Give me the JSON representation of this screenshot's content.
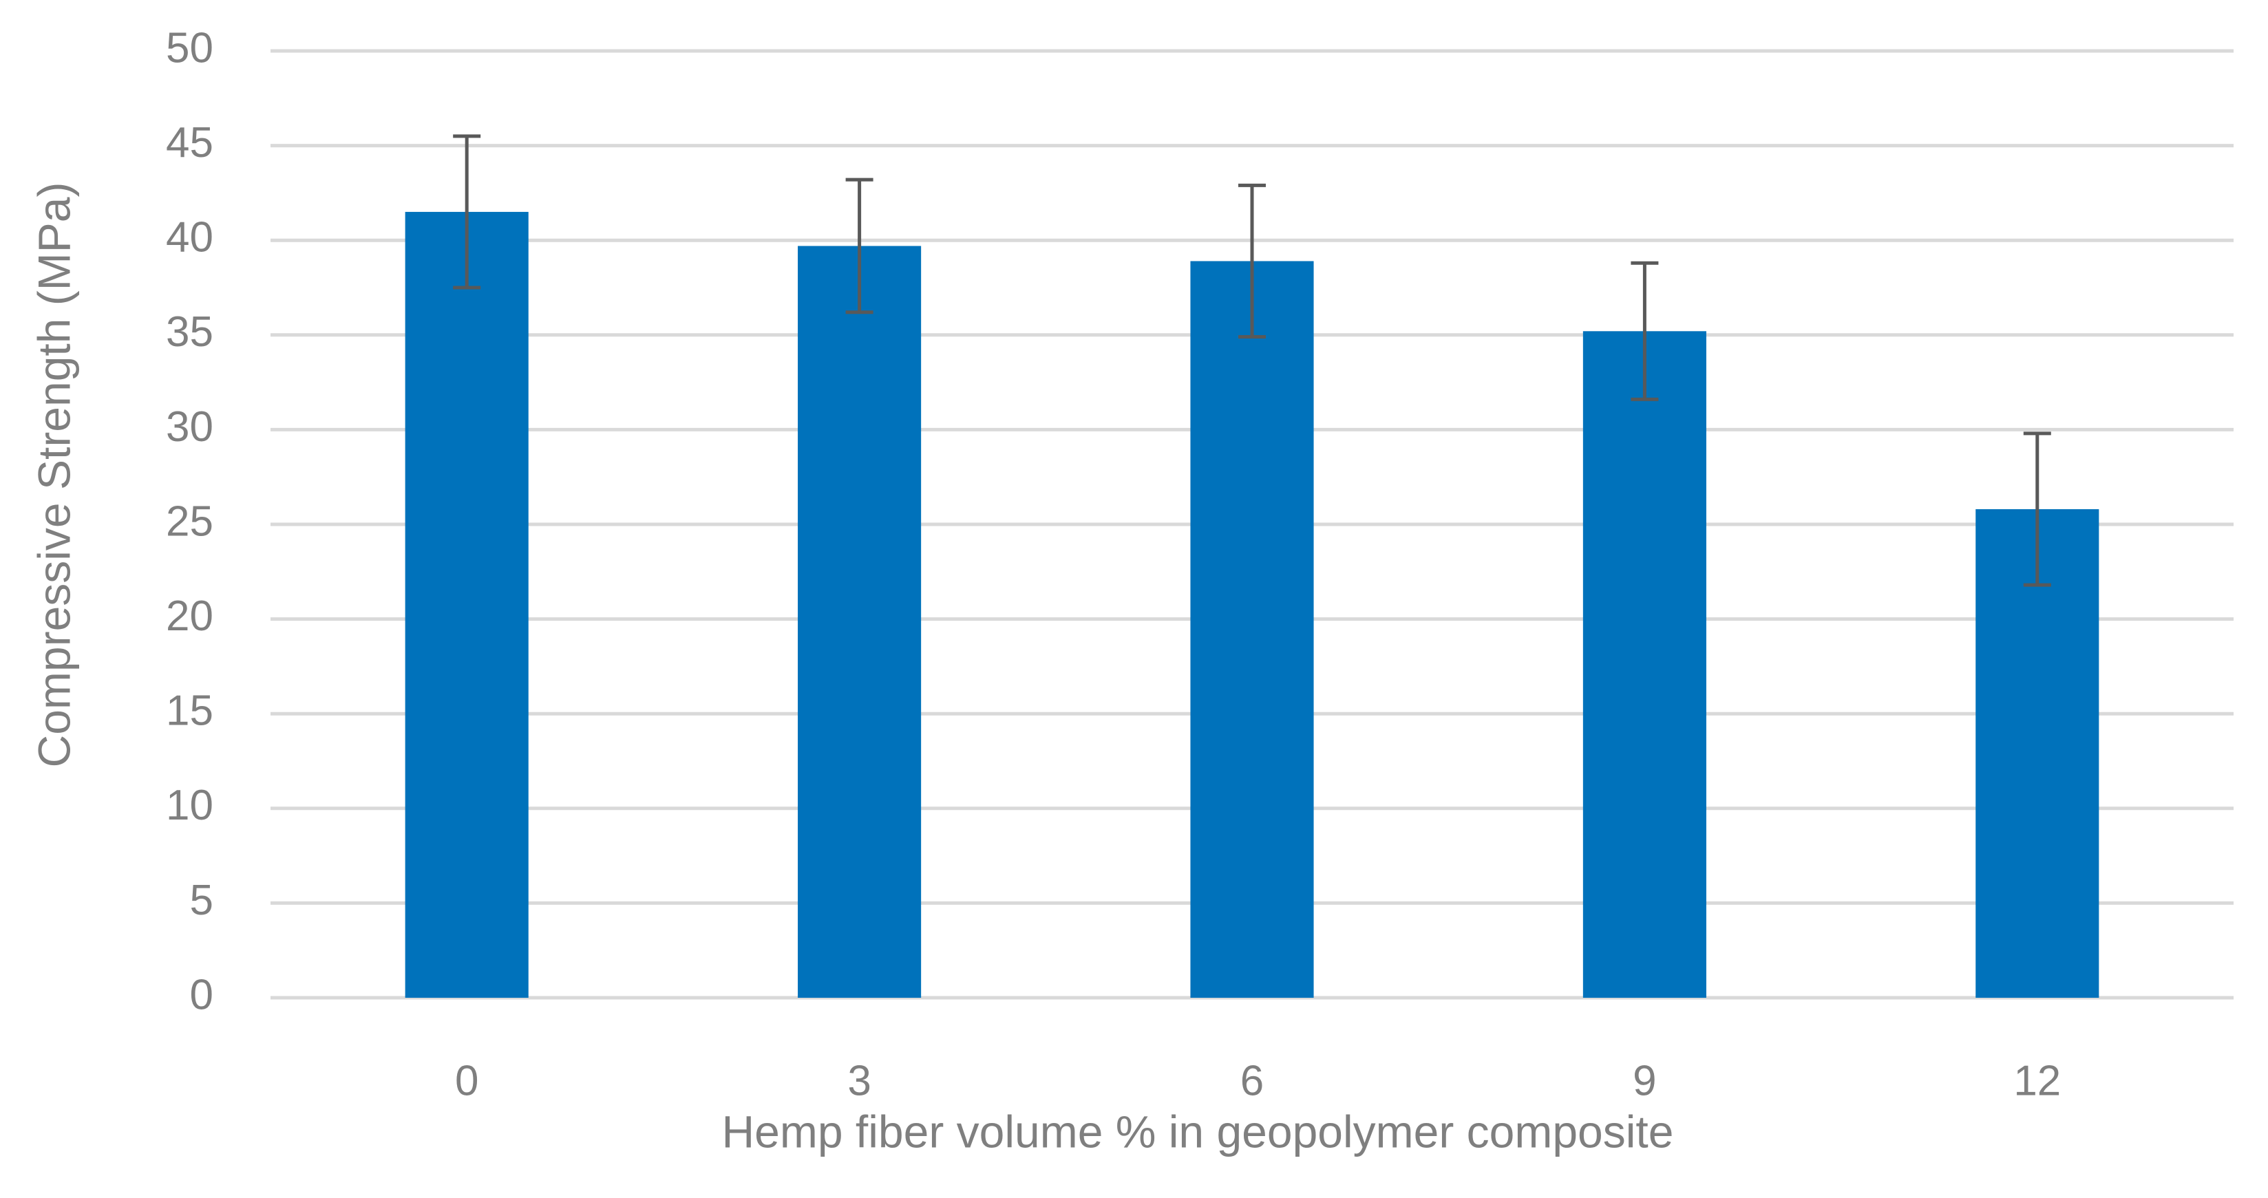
{
  "chart_data": {
    "type": "bar",
    "x_label": "Hemp fiber volume % in geopolymer composite",
    "y_label": "Compressive Strength (MPa)",
    "categories": [
      "0",
      "3",
      "6",
      "9",
      "12"
    ],
    "values": [
      41.5,
      39.7,
      38.9,
      35.2,
      25.8
    ],
    "errors": [
      4.0,
      3.5,
      4.0,
      3.6,
      4.0
    ],
    "color": "#0072bb",
    "error_color": "#595959",
    "ylim": [
      0,
      50
    ],
    "yticks": [
      0,
      5,
      10,
      15,
      20,
      25,
      30,
      35,
      40,
      45,
      50
    ],
    "grid": true
  }
}
